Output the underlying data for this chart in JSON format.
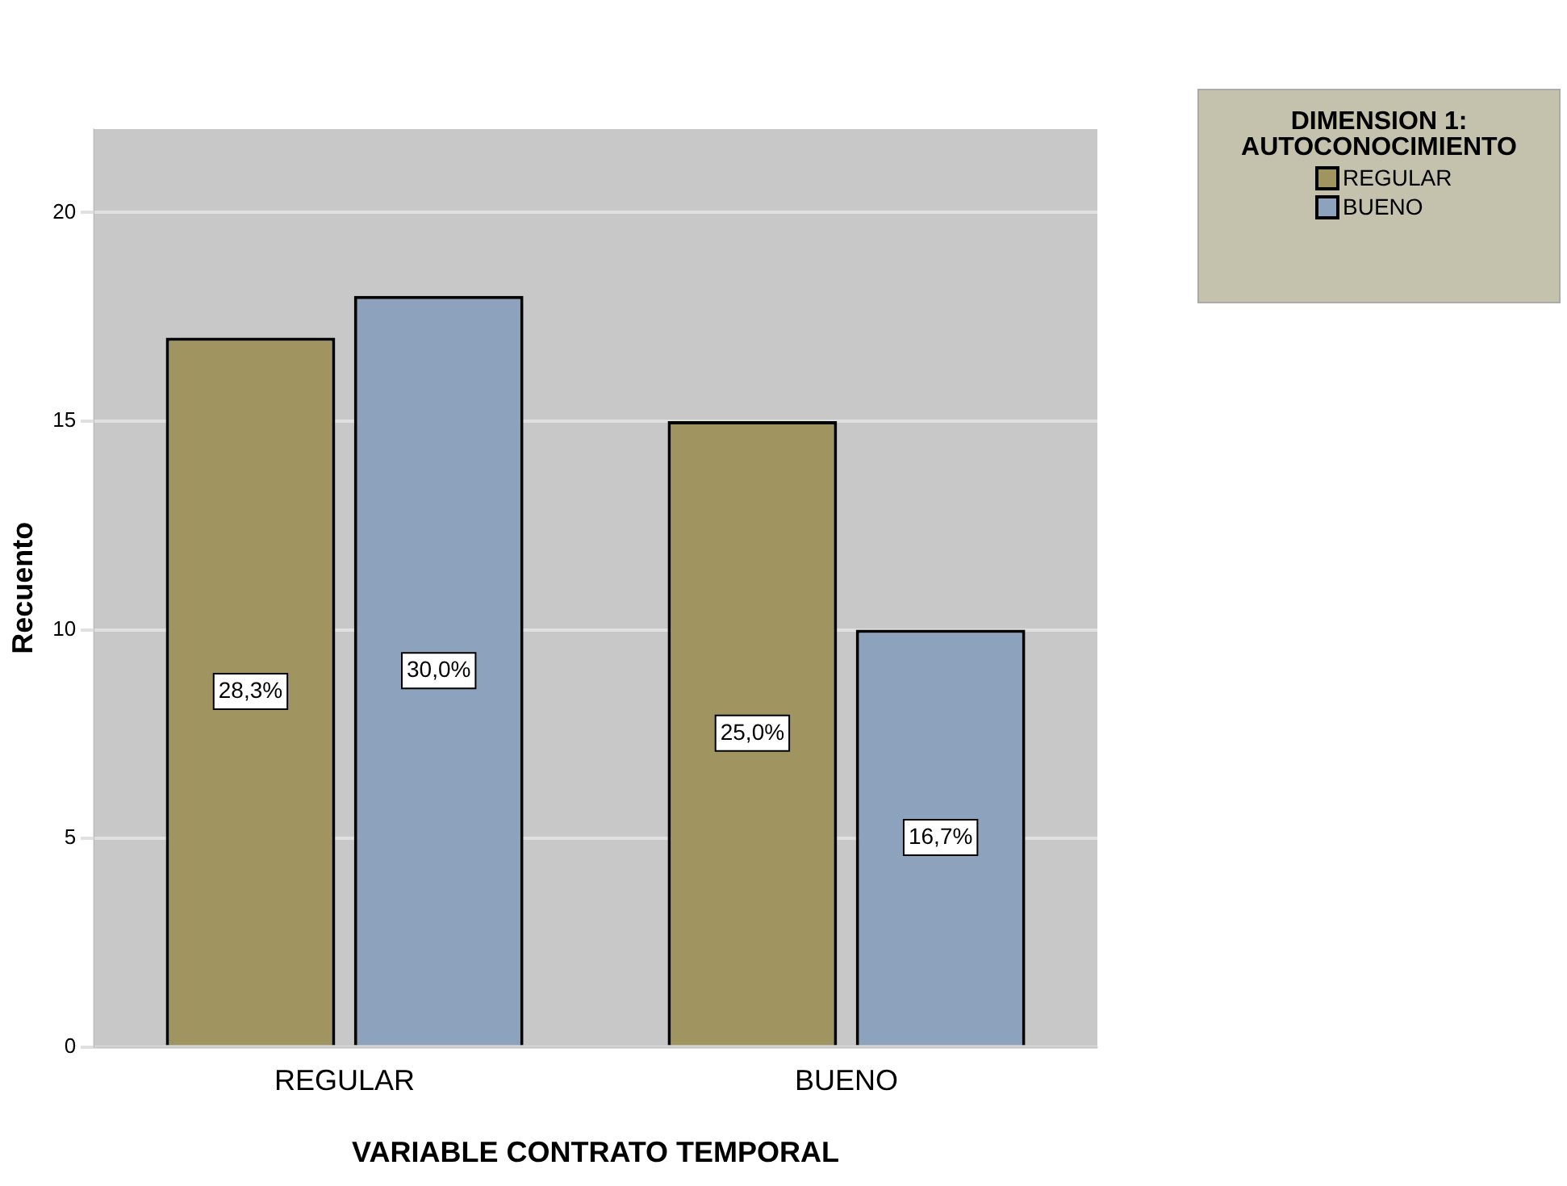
{
  "chart_data": {
    "type": "bar",
    "xlabel": "VARIABLE CONTRATO TEMPORAL",
    "ylabel": "Recuento",
    "legend_title": "DIMENSION 1: AUTOCONOCIMIENTO",
    "categories": [
      "REGULAR",
      "BUENO"
    ],
    "series": [
      {
        "name": "REGULAR",
        "color": "#a09460",
        "values": [
          17,
          15
        ]
      },
      {
        "name": "BUENO",
        "color": "#8da2bd",
        "values": [
          18,
          10
        ]
      }
    ],
    "annotations": [
      "28,3%",
      "30,0%",
      "25,0%",
      "16,7%"
    ],
    "ylim": [
      0,
      22
    ],
    "yticks": [
      0,
      5,
      10,
      15,
      20
    ],
    "grid": "y",
    "legend": "top right"
  }
}
